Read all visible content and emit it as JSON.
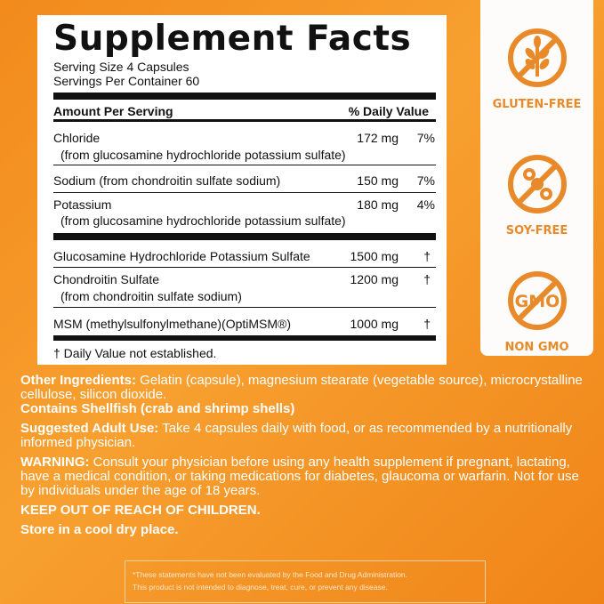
{
  "facts": {
    "title": "Supplement Facts",
    "serving_size": "Serving Size  4 Capsules",
    "servings_per_container": "Servings Per Container  60",
    "header_amount": "Amount Per Serving",
    "header_dv": "% Daily Value",
    "rows": [
      {
        "name": "Chloride",
        "sub": "(from glucosamine hydrochloride potassium sulfate)",
        "amount": "172 mg",
        "dv": "7%"
      },
      {
        "name": "Sodium (from chondroitin sulfate sodium)",
        "amount": "150 mg",
        "dv": "7%"
      },
      {
        "name": "Potassium",
        "sub": "(from glucosamine hydrochloride potassium sulfate)",
        "amount": "180 mg",
        "dv": "4%"
      },
      {
        "name": "Glucosamine Hydrochloride Potassium Sulfate",
        "amount": "1500 mg",
        "dv": "†"
      },
      {
        "name": "Chondroitin Sulfate",
        "sub": "(from chondroitin sulfate sodium)",
        "amount": "1200 mg",
        "dv": "†"
      },
      {
        "name": "MSM (methylsulfonylmethane)(OptiMSM®)",
        "amount": "1000 mg",
        "dv": "†"
      }
    ],
    "footnote": "† Daily Value not established."
  },
  "badges": [
    {
      "label": "GLUTEN-FREE",
      "icon": "wheat-crossed-icon"
    },
    {
      "label": "SOY-FREE",
      "icon": "soy-crossed-icon"
    },
    {
      "label": "NON GMO",
      "icon": "gmo-crossed-icon",
      "icon_text": "GMO"
    }
  ],
  "info": {
    "other_label": "Other Ingredients:",
    "other_text": " Gelatin (capsule), magnesium stearate (vegetable source), microcrystalline cellulose, silicon dioxide.",
    "shellfish": "Contains Shellfish (crab and shrimp shells)",
    "use_label": "Suggested Adult Use:",
    "use_text": " Take 4 capsules daily with food, or as recommended by a nutritionally informed physician.",
    "warning_label": "WARNING:",
    "warning_text": " Consult your physician before using any health supplement if pregnant, lactating, have a medical condition, or taking medications for diabetes, glaucoma or warfarin. Not for use by individuals under the age of 18 years.",
    "keep_out": "KEEP OUT OF REACH OF CHILDREN.",
    "store": "Store in a cool dry place."
  },
  "disclaimer": {
    "line1": "*These statements have not been evaluated by the Food and Drug Administration.",
    "line2": "This product is not intended to diagnose, treat, cure, or prevent any disease."
  },
  "colors": {
    "accent": "#e8892a",
    "background": "#f7941d"
  }
}
